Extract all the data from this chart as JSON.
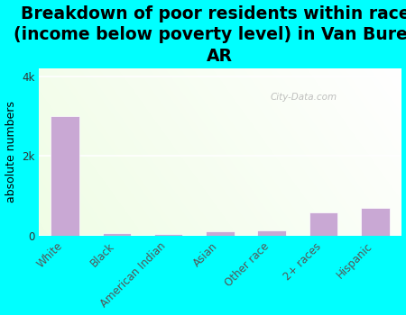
{
  "title": "Breakdown of poor residents within races\n(income below poverty level) in Van Buren,\nAR",
  "categories": [
    "White",
    "Black",
    "American Indian",
    "Asian",
    "Other race",
    "2+ races",
    "Hispanic"
  ],
  "values": [
    3000,
    80,
    45,
    110,
    140,
    580,
    700
  ],
  "bar_color": "#c9a8d4",
  "bar_edge_color": "#ffffff",
  "ylabel": "absolute numbers",
  "ylim": [
    0,
    4200
  ],
  "yticks": [
    0,
    2000,
    4000
  ],
  "ytick_labels": [
    "0",
    "2k",
    "4k"
  ],
  "background_color": "#00ffff",
  "watermark": "City-Data.com",
  "title_fontsize": 13.5,
  "ylabel_fontsize": 9,
  "tick_fontsize": 8.5
}
